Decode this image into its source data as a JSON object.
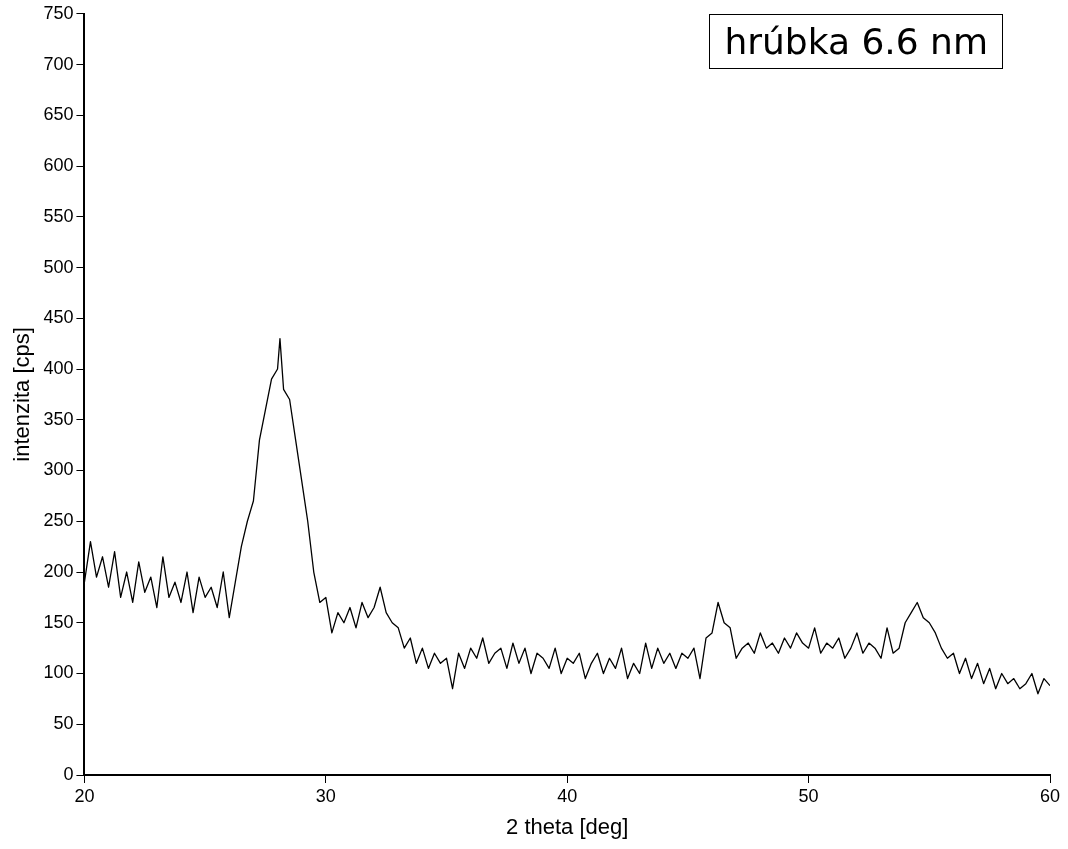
{
  "chart_data": {
    "type": "line",
    "xlabel": "2 theta [deg]",
    "ylabel": "intenzita [cps]",
    "annotations": [
      "hrúbka 6.6 nm"
    ],
    "x": [
      20,
      20.25,
      20.5,
      20.75,
      21,
      21.25,
      21.5,
      21.75,
      22,
      22.25,
      22.5,
      22.75,
      23,
      23.25,
      23.5,
      23.75,
      24,
      24.25,
      24.5,
      24.75,
      25,
      25.25,
      25.5,
      25.75,
      26,
      26.25,
      26.5,
      26.75,
      27,
      27.25,
      27.5,
      27.75,
      28,
      28.1,
      28.25,
      28.5,
      28.75,
      29,
      29.25,
      29.5,
      29.75,
      30,
      30.25,
      30.5,
      30.75,
      31,
      31.25,
      31.5,
      31.75,
      32,
      32.25,
      32.5,
      32.75,
      33,
      33.25,
      33.5,
      33.75,
      34,
      34.25,
      34.5,
      34.75,
      35,
      35.25,
      35.5,
      35.75,
      36,
      36.25,
      36.5,
      36.75,
      37,
      37.25,
      37.5,
      37.75,
      38,
      38.25,
      38.5,
      38.75,
      39,
      39.25,
      39.5,
      39.75,
      40,
      40.25,
      40.5,
      40.75,
      41,
      41.25,
      41.5,
      41.75,
      42,
      42.25,
      42.5,
      42.75,
      43,
      43.25,
      43.5,
      43.75,
      44,
      44.25,
      44.5,
      44.75,
      45,
      45.25,
      45.5,
      45.75,
      46,
      46.25,
      46.5,
      46.75,
      47,
      47.25,
      47.5,
      47.75,
      48,
      48.25,
      48.5,
      48.75,
      49,
      49.25,
      49.5,
      49.75,
      50,
      50.25,
      50.5,
      50.75,
      51,
      51.25,
      51.5,
      51.75,
      52,
      52.25,
      52.5,
      52.75,
      53,
      53.25,
      53.5,
      53.75,
      54,
      54.25,
      54.5,
      54.75,
      55,
      55.25,
      55.5,
      55.75,
      56,
      56.25,
      56.5,
      56.75,
      57,
      57.25,
      57.5,
      57.75,
      58,
      58.25,
      58.5,
      58.75,
      59,
      59.25,
      59.5,
      59.75,
      60
    ],
    "series": [
      {
        "color": "#000000",
        "values": [
          190,
          230,
          195,
          215,
          185,
          220,
          175,
          200,
          170,
          210,
          180,
          195,
          165,
          215,
          175,
          190,
          170,
          200,
          160,
          195,
          175,
          185,
          165,
          200,
          155,
          190,
          225,
          250,
          270,
          330,
          360,
          390,
          400,
          430,
          380,
          370,
          330,
          290,
          250,
          200,
          170,
          175,
          140,
          160,
          150,
          165,
          145,
          170,
          155,
          165,
          185,
          160,
          150,
          145,
          125,
          135,
          110,
          125,
          105,
          120,
          110,
          115,
          85,
          120,
          105,
          125,
          115,
          135,
          110,
          120,
          125,
          105,
          130,
          110,
          125,
          100,
          120,
          115,
          105,
          125,
          100,
          115,
          110,
          120,
          95,
          110,
          120,
          100,
          115,
          105,
          125,
          95,
          110,
          100,
          130,
          105,
          125,
          110,
          120,
          105,
          120,
          115,
          125,
          95,
          135,
          140,
          170,
          150,
          145,
          115,
          125,
          130,
          120,
          140,
          125,
          130,
          120,
          135,
          125,
          140,
          130,
          125,
          145,
          120,
          130,
          125,
          135,
          115,
          125,
          140,
          120,
          130,
          125,
          115,
          145,
          120,
          125,
          150,
          160,
          170,
          155,
          150,
          140,
          125,
          115,
          120,
          100,
          115,
          95,
          110,
          90,
          105,
          85,
          100,
          90,
          95,
          85,
          90,
          100,
          80,
          95,
          88
        ]
      }
    ],
    "xlim": [
      20,
      60
    ],
    "xticks": [
      20,
      30,
      40,
      50,
      60
    ],
    "ylim": [
      0,
      750
    ],
    "yticks": [
      0,
      50,
      100,
      150,
      200,
      250,
      300,
      350,
      400,
      450,
      500,
      550,
      600,
      650,
      700,
      750
    ],
    "grid": false,
    "legend": false,
    "marker": "none",
    "line_style": "solid"
  }
}
